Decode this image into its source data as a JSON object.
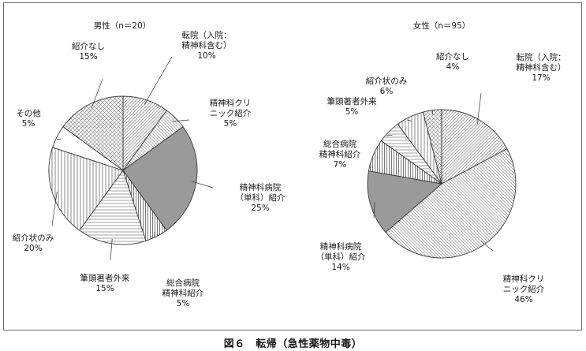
{
  "caption": "図６　転帰（急性薬物中毒）",
  "chart_data": [
    {
      "type": "pie",
      "title": "男性（n＝20）",
      "slices": [
        {
          "label": [
            "転院（入院：",
            "精神科含む）"
          ],
          "pct_label": "10%",
          "value": 10,
          "pattern": "diag-left",
          "name": "tenin"
        },
        {
          "label": [
            "精神科クリ",
            "ニック紹介"
          ],
          "pct_label": "5%",
          "value": 5,
          "pattern": "diag-right",
          "name": "clinic"
        },
        {
          "label": [
            "精神科病院",
            "（単科）紹介"
          ],
          "pct_label": "25%",
          "value": 25,
          "pattern": "solid-gray",
          "name": "hospital"
        },
        {
          "label": [
            "総合病院",
            "精神科紹介"
          ],
          "pct_label": "5%",
          "value": 5,
          "pattern": "vertical-dense",
          "name": "general"
        },
        {
          "label": [
            "筆頭著者外来"
          ],
          "pct_label": "15%",
          "value": 15,
          "pattern": "horizontal",
          "name": "author"
        },
        {
          "label": [
            "紹介状のみ"
          ],
          "pct_label": "20%",
          "value": 20,
          "pattern": "vertical",
          "name": "letter"
        },
        {
          "label": [
            "その他"
          ],
          "pct_label": "5%",
          "value": 5,
          "pattern": "white",
          "name": "other"
        },
        {
          "label": [
            "紹介なし"
          ],
          "pct_label": "15%",
          "value": 15,
          "pattern": "diag-cross",
          "name": "none"
        }
      ]
    },
    {
      "type": "pie",
      "title": "女性（n＝95）",
      "slices": [
        {
          "label": [
            "転院（入院：",
            "精神科含む）"
          ],
          "pct_label": "17%",
          "value": 17,
          "pattern": "diag-left",
          "name": "tenin"
        },
        {
          "label": [
            "精神科クリ",
            "ニック紹介"
          ],
          "pct_label": "46%",
          "value": 46,
          "pattern": "diag-right",
          "name": "clinic"
        },
        {
          "label": [
            "精神科病院",
            "（単科）紹介"
          ],
          "pct_label": "14%",
          "value": 14,
          "pattern": "solid-gray",
          "name": "hospital"
        },
        {
          "label": [
            "総合病院",
            "精神科紹介"
          ],
          "pct_label": "7%",
          "value": 7,
          "pattern": "vertical-dense",
          "name": "general"
        },
        {
          "label": [
            "筆頭著者外来"
          ],
          "pct_label": "5%",
          "value": 5,
          "pattern": "horizontal",
          "name": "author"
        },
        {
          "label": [
            "紹介状のみ"
          ],
          "pct_label": "6%",
          "value": 6,
          "pattern": "vertical",
          "name": "letter"
        },
        {
          "label": [
            "紹介なし"
          ],
          "pct_label": "4%",
          "value": 4,
          "pattern": "diag-cross",
          "name": "none"
        }
      ]
    }
  ]
}
